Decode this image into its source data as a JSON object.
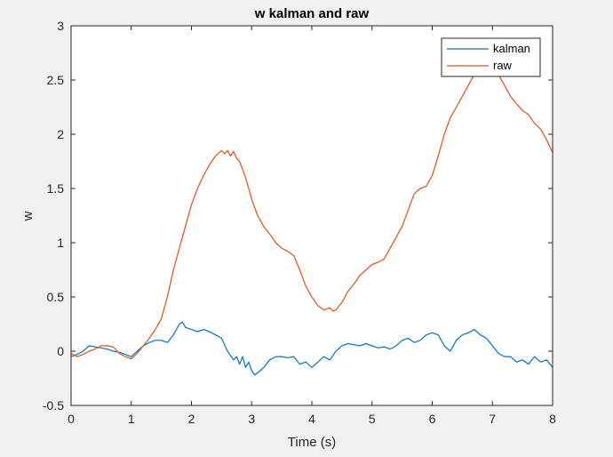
{
  "chart_data": {
    "type": "line",
    "title": "w kalman and raw",
    "xlabel": "Time (s)",
    "ylabel": "w",
    "xlim": [
      0,
      8
    ],
    "ylim": [
      -0.5,
      3
    ],
    "xticks": [
      "0",
      "1",
      "2",
      "3",
      "4",
      "5",
      "6",
      "7",
      "8"
    ],
    "yticks": [
      "-0.5",
      "0",
      "0.5",
      "1",
      "1.5",
      "2",
      "2.5",
      "3"
    ],
    "grid": false,
    "legend_position": "top-right",
    "series": [
      {
        "name": "kalman",
        "color": "#0072bd",
        "x": [
          0,
          0.1,
          0.2,
          0.3,
          0.4,
          0.5,
          0.6,
          0.7,
          0.8,
          0.9,
          1.0,
          1.1,
          1.2,
          1.3,
          1.4,
          1.5,
          1.6,
          1.7,
          1.8,
          1.85,
          1.9,
          2.0,
          2.1,
          2.2,
          2.3,
          2.4,
          2.5,
          2.6,
          2.7,
          2.75,
          2.8,
          2.85,
          2.9,
          2.95,
          3.0,
          3.05,
          3.1,
          3.2,
          3.3,
          3.4,
          3.5,
          3.6,
          3.7,
          3.8,
          3.9,
          4.0,
          4.1,
          4.2,
          4.3,
          4.4,
          4.5,
          4.6,
          4.7,
          4.8,
          4.9,
          5.0,
          5.1,
          5.2,
          5.3,
          5.4,
          5.5,
          5.6,
          5.7,
          5.8,
          5.9,
          6.0,
          6.1,
          6.2,
          6.3,
          6.4,
          6.5,
          6.6,
          6.7,
          6.8,
          6.9,
          7.0,
          7.1,
          7.2,
          7.3,
          7.4,
          7.5,
          7.6,
          7.7,
          7.8,
          7.9,
          8.0
        ],
        "y": [
          -0.05,
          -0.03,
          0.0,
          0.05,
          0.04,
          0.03,
          0.02,
          0.0,
          -0.01,
          -0.03,
          -0.05,
          0.0,
          0.05,
          0.08,
          0.1,
          0.1,
          0.08,
          0.15,
          0.25,
          0.27,
          0.22,
          0.2,
          0.18,
          0.2,
          0.18,
          0.15,
          0.12,
          0.0,
          -0.08,
          -0.05,
          -0.12,
          -0.05,
          -0.15,
          -0.1,
          -0.18,
          -0.22,
          -0.2,
          -0.15,
          -0.08,
          -0.05,
          -0.05,
          -0.06,
          -0.05,
          -0.12,
          -0.1,
          -0.15,
          -0.1,
          -0.05,
          -0.08,
          0.0,
          0.05,
          0.07,
          0.06,
          0.05,
          0.07,
          0.05,
          0.03,
          0.04,
          0.02,
          0.05,
          0.1,
          0.12,
          0.08,
          0.1,
          0.15,
          0.17,
          0.15,
          0.05,
          0.0,
          0.1,
          0.15,
          0.17,
          0.2,
          0.15,
          0.12,
          0.05,
          -0.02,
          -0.05,
          -0.05,
          -0.1,
          -0.08,
          -0.12,
          -0.05,
          -0.1,
          -0.08,
          -0.15
        ]
      },
      {
        "name": "raw",
        "color": "#d95319",
        "x": [
          0,
          0.1,
          0.2,
          0.3,
          0.4,
          0.5,
          0.6,
          0.7,
          0.8,
          0.9,
          1.0,
          1.1,
          1.2,
          1.3,
          1.4,
          1.5,
          1.6,
          1.7,
          1.8,
          1.9,
          2.0,
          2.1,
          2.2,
          2.3,
          2.4,
          2.5,
          2.55,
          2.6,
          2.65,
          2.7,
          2.75,
          2.8,
          2.9,
          3.0,
          3.1,
          3.2,
          3.3,
          3.4,
          3.5,
          3.6,
          3.7,
          3.8,
          3.9,
          4.0,
          4.1,
          4.2,
          4.3,
          4.35,
          4.4,
          4.5,
          4.6,
          4.7,
          4.8,
          4.9,
          5.0,
          5.1,
          5.2,
          5.3,
          5.4,
          5.5,
          5.6,
          5.7,
          5.8,
          5.9,
          6.0,
          6.1,
          6.2,
          6.3,
          6.4,
          6.5,
          6.6,
          6.7,
          6.8,
          6.9,
          7.0,
          7.1,
          7.2,
          7.3,
          7.4,
          7.5,
          7.6,
          7.7,
          7.8,
          7.9,
          8.0
        ],
        "y": [
          -0.02,
          -0.05,
          -0.03,
          0.0,
          0.02,
          0.05,
          0.05,
          0.04,
          -0.02,
          -0.05,
          -0.07,
          -0.02,
          0.05,
          0.12,
          0.2,
          0.3,
          0.5,
          0.75,
          0.95,
          1.15,
          1.35,
          1.5,
          1.62,
          1.72,
          1.8,
          1.85,
          1.82,
          1.85,
          1.8,
          1.84,
          1.78,
          1.75,
          1.6,
          1.4,
          1.25,
          1.15,
          1.08,
          1.0,
          0.95,
          0.92,
          0.88,
          0.75,
          0.6,
          0.5,
          0.42,
          0.38,
          0.4,
          0.37,
          0.38,
          0.45,
          0.55,
          0.62,
          0.7,
          0.75,
          0.8,
          0.82,
          0.85,
          0.95,
          1.05,
          1.15,
          1.3,
          1.45,
          1.5,
          1.52,
          1.62,
          1.8,
          2.0,
          2.15,
          2.25,
          2.35,
          2.45,
          2.55,
          2.6,
          2.65,
          2.62,
          2.55,
          2.45,
          2.35,
          2.28,
          2.22,
          2.18,
          2.1,
          2.05,
          1.95,
          1.83
        ]
      }
    ]
  }
}
